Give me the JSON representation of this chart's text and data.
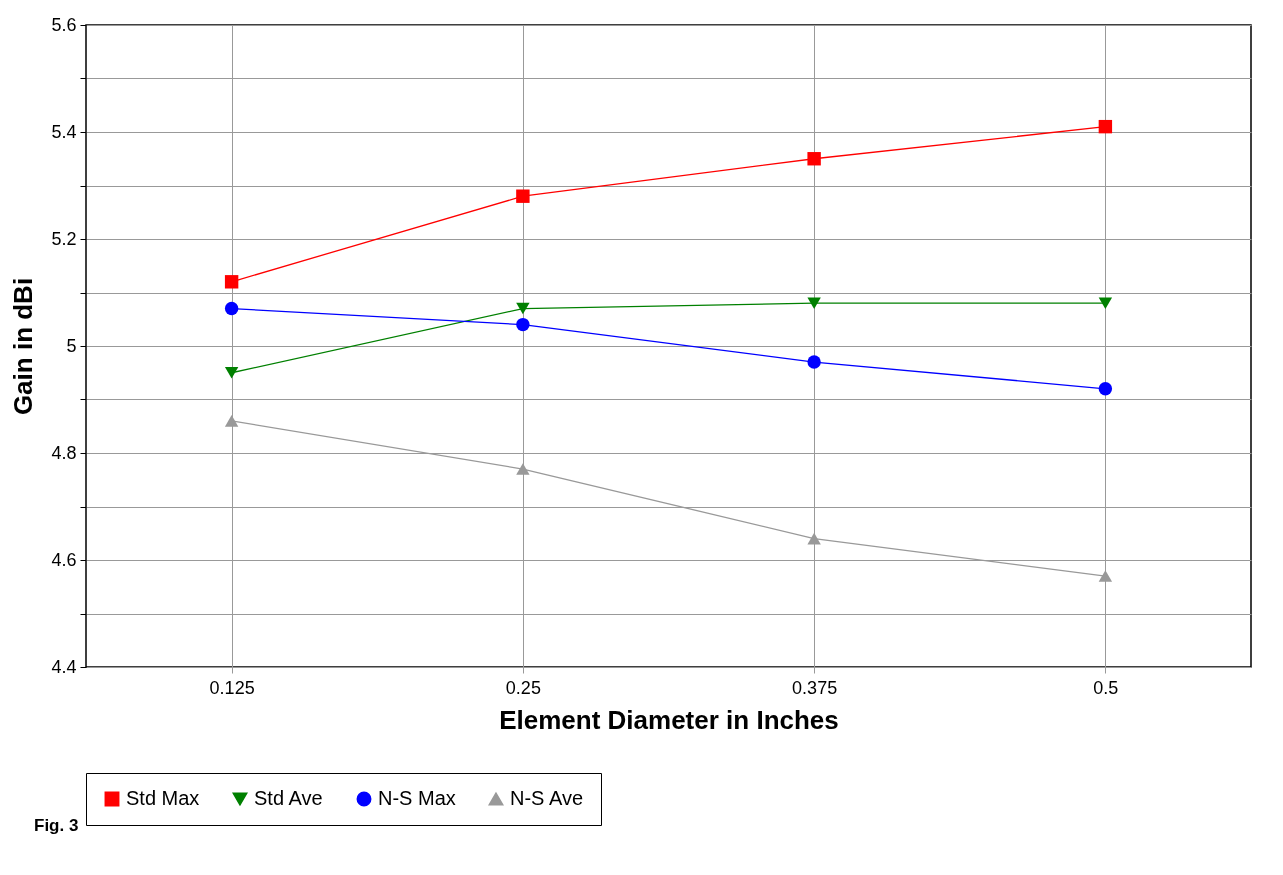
{
  "chart_data": {
    "type": "line",
    "xlabel": "Element Diameter in Inches",
    "ylabel": "Gain in dBi",
    "categories": [
      "0.125",
      "0.25",
      "0.375",
      "0.5"
    ],
    "series": [
      {
        "name": "Std Max",
        "color": "#ff0000",
        "marker": "square",
        "values": [
          5.12,
          5.28,
          5.35,
          5.41
        ]
      },
      {
        "name": "Std Ave",
        "color": "#008000",
        "marker": "triangle-down",
        "values": [
          4.95,
          5.07,
          5.08,
          5.08
        ]
      },
      {
        "name": "N-S Max",
        "color": "#0000ff",
        "marker": "circle",
        "values": [
          5.07,
          5.04,
          4.97,
          4.92
        ]
      },
      {
        "name": "N-S Ave",
        "color": "#999999",
        "marker": "triangle-up",
        "values": [
          4.86,
          4.77,
          4.64,
          4.57
        ]
      }
    ],
    "ylim": [
      4.4,
      5.6
    ],
    "yticks": [
      4.4,
      {
        "value": 4.5,
        "label": null
      },
      4.6,
      {
        "value": 4.7,
        "label": null
      },
      4.8,
      {
        "value": 4.9,
        "label": null
      },
      5,
      {
        "value": 5.1,
        "label": null
      },
      5.2,
      {
        "value": 5.3,
        "label": null
      },
      5.4,
      {
        "value": 5.5,
        "label": null
      },
      5.6
    ],
    "grid": true,
    "legend": "bottom",
    "line_style": "solid",
    "annotations": [
      "Fig. 3"
    ]
  }
}
